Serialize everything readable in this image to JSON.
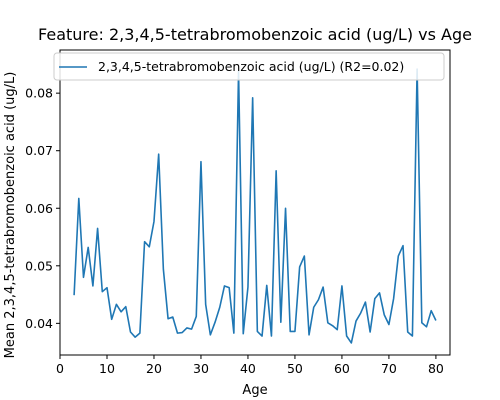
{
  "chart_data": {
    "type": "line",
    "title": "Feature: 2,3,4,5-tetrabromobenzoic acid (ug/L) vs Age",
    "xlabel": "Age",
    "ylabel": "Mean 2,3,4,5-tetrabromobenzoic acid (ug/L)",
    "xlim": [
      0,
      83
    ],
    "ylim": [
      0.0345,
      0.0875
    ],
    "xticks": [
      0,
      10,
      20,
      30,
      40,
      50,
      60,
      70,
      80
    ],
    "yticks": [
      0.04,
      0.05,
      0.06,
      0.07,
      0.08
    ],
    "ytick_labels": [
      "0.04",
      "0.05",
      "0.06",
      "0.07",
      "0.08"
    ],
    "grid": false,
    "legend_position": "top",
    "series": [
      {
        "name": "2,3,4,5-tetrabromobenzoic acid (ug/L) (R2=0.02)",
        "color": "#1f77b4",
        "x": [
          3,
          4,
          5,
          6,
          7,
          8,
          9,
          10,
          11,
          12,
          13,
          14,
          15,
          16,
          17,
          18,
          19,
          20,
          21,
          22,
          23,
          24,
          25,
          26,
          27,
          28,
          29,
          30,
          31,
          32,
          33,
          34,
          35,
          36,
          37,
          38,
          39,
          40,
          41,
          42,
          43,
          44,
          45,
          46,
          47,
          48,
          49,
          50,
          51,
          52,
          53,
          54,
          55,
          56,
          57,
          58,
          59,
          60,
          61,
          62,
          63,
          64,
          65,
          66,
          67,
          68,
          69,
          70,
          71,
          72,
          73,
          74,
          75,
          76,
          77,
          78,
          79,
          80
        ],
        "y": [
          0.0449,
          0.0617,
          0.048,
          0.0532,
          0.0465,
          0.0565,
          0.0455,
          0.0462,
          0.0407,
          0.0433,
          0.042,
          0.0429,
          0.0385,
          0.0376,
          0.0383,
          0.0542,
          0.0533,
          0.0577,
          0.0694,
          0.0494,
          0.0408,
          0.0411,
          0.0383,
          0.0384,
          0.0392,
          0.039,
          0.0412,
          0.0681,
          0.0433,
          0.038,
          0.0402,
          0.0428,
          0.0465,
          0.0462,
          0.0383,
          0.0838,
          0.0382,
          0.0463,
          0.0792,
          0.0386,
          0.0378,
          0.0466,
          0.0378,
          0.0665,
          0.0402,
          0.06,
          0.0386,
          0.0386,
          0.0498,
          0.0517,
          0.038,
          0.0428,
          0.0441,
          0.0463,
          0.0401,
          0.0396,
          0.0389,
          0.0465,
          0.0378,
          0.0366,
          0.0404,
          0.0418,
          0.0437,
          0.0385,
          0.0443,
          0.0453,
          0.0415,
          0.0398,
          0.0443,
          0.0517,
          0.0535,
          0.0385,
          0.0378,
          0.0842,
          0.0401,
          0.0394,
          0.0422,
          0.0405
        ]
      }
    ]
  }
}
